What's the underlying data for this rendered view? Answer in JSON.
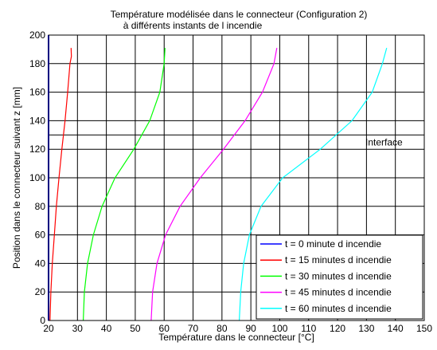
{
  "chart_data": {
    "type": "line",
    "title_line1": "Température modélisée dans le connecteur (Configuration 2)",
    "title_line2": "à différents instants de l incendie",
    "xlabel": "Température dans le connecteur [°C]",
    "ylabel": "Position dans le connecteur suivant z [mm]",
    "xlim": [
      20,
      150
    ],
    "ylim": [
      0,
      200
    ],
    "xticks": [
      20,
      30,
      40,
      50,
      60,
      70,
      80,
      90,
      100,
      110,
      120,
      130,
      140,
      150
    ],
    "yticks": [
      0,
      20,
      40,
      60,
      80,
      100,
      120,
      140,
      160,
      180,
      200
    ],
    "grid": true,
    "legend_position": "bottom-right",
    "annotation": {
      "text": "Interface",
      "y": 130,
      "x_start": 20,
      "x_end": 150
    },
    "series": [
      {
        "name": "t = 0 minute d incendie",
        "color": "#0000ff",
        "x": [
          20,
          20,
          20,
          20,
          20,
          20,
          20,
          20,
          20,
          20,
          20
        ],
        "y": [
          0,
          20,
          40,
          60,
          80,
          100,
          120,
          140,
          160,
          180,
          200
        ]
      },
      {
        "name": "t = 15 minutes d incendie",
        "color": "#ff0000",
        "x": [
          20.5,
          20.8,
          21.3,
          22,
          22.7,
          23.6,
          24.6,
          25.7,
          26.6,
          27.4,
          27.9,
          27.8
        ],
        "y": [
          0,
          20,
          40,
          60,
          80,
          100,
          120,
          140,
          160,
          180,
          185,
          191
        ]
      },
      {
        "name": "t = 30 minutes d incendie",
        "color": "#00ff00",
        "x": [
          32,
          32.4,
          33.5,
          35.5,
          38.5,
          43,
          49.5,
          55,
          58.5,
          60,
          60.3
        ],
        "y": [
          0,
          20,
          40,
          60,
          80,
          100,
          120,
          140,
          160,
          180,
          191
        ]
      },
      {
        "name": "t = 45 minutes d incendie",
        "color": "#ff00ff",
        "x": [
          55.5,
          56,
          57.5,
          60.5,
          65.5,
          72.5,
          80.5,
          88,
          94,
          98,
          99
        ],
        "y": [
          0,
          20,
          40,
          60,
          80,
          100,
          120,
          140,
          160,
          180,
          191
        ]
      },
      {
        "name": "t = 60 minutes d incendie",
        "color": "#00ffff",
        "x": [
          86,
          86.5,
          87.5,
          89.5,
          93.5,
          101,
          114,
          125,
          132,
          135.5,
          137
        ],
        "y": [
          0,
          20,
          40,
          60,
          80,
          100,
          120,
          140,
          160,
          180,
          191
        ]
      }
    ]
  }
}
